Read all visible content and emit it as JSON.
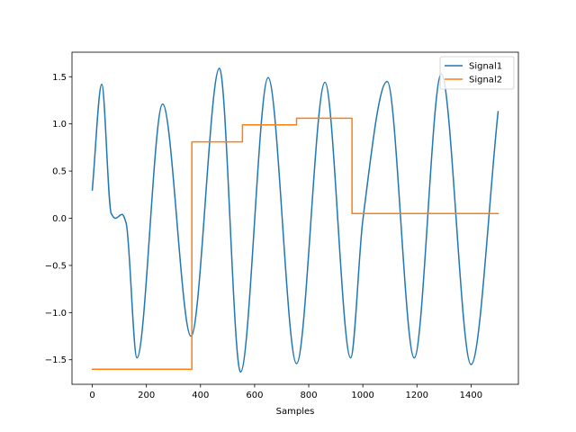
{
  "chart_data": {
    "type": "line",
    "title": "",
    "xlabel": "Samples",
    "ylabel": "",
    "xlim": [
      -75,
      1575
    ],
    "ylim": [
      -1.76,
      1.76
    ],
    "xticks": [
      0,
      200,
      400,
      600,
      800,
      1000,
      1200,
      1400
    ],
    "yticks": [
      -1.5,
      -1.0,
      -0.5,
      0.0,
      0.5,
      1.0,
      1.5
    ],
    "ytick_labels": [
      "−1.5",
      "−1.0",
      "−0.5",
      "0.0",
      "0.5",
      "1.0",
      "1.5"
    ],
    "grid": false,
    "legend_position": "top-right",
    "series": [
      {
        "name": "Signal1",
        "color": "#1f77b4",
        "curve": "smooth",
        "x": [
          0,
          35,
          70,
          85,
          110,
          125,
          165,
          260,
          365,
          470,
          548,
          650,
          755,
          860,
          955,
          1000,
          1090,
          1190,
          1290,
          1400,
          1500
        ],
        "y": [
          0.3,
          1.42,
          0.05,
          0.0,
          0.04,
          -0.05,
          -1.48,
          1.21,
          -1.25,
          1.59,
          -1.63,
          1.49,
          -1.54,
          1.44,
          -1.48,
          -0.02,
          1.45,
          -1.48,
          1.53,
          -1.55,
          1.13
        ]
      },
      {
        "name": "Signal2",
        "color": "#ff7f0e",
        "curve": "step",
        "x": [
          0,
          368,
          368,
          555,
          555,
          755,
          755,
          960,
          960,
          1500
        ],
        "y": [
          -1.6,
          -1.6,
          0.81,
          0.81,
          0.99,
          0.99,
          1.06,
          1.06,
          0.05,
          0.05
        ]
      }
    ]
  }
}
